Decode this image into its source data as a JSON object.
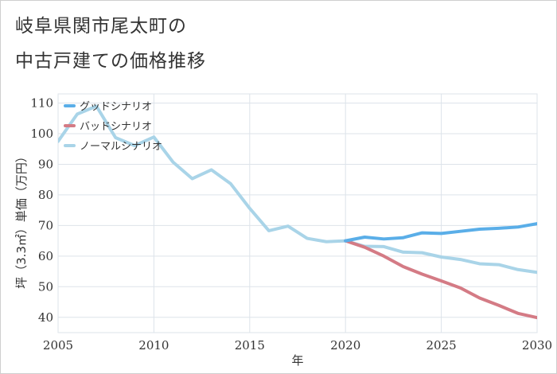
{
  "title_line1": "岐阜県関市尾太町の",
  "title_line2": "中古戸建ての価格推移",
  "chart_data": {
    "type": "line",
    "xlabel": "年",
    "ylabel": "坪（3.3㎡）単価（万円）",
    "xlim": [
      2005,
      2030
    ],
    "ylim": [
      35,
      113
    ],
    "xticks": [
      2005,
      2010,
      2015,
      2020,
      2025,
      2030
    ],
    "yticks": [
      40,
      50,
      60,
      70,
      80,
      90,
      100,
      110
    ],
    "grid": true,
    "legend_position": "top-left",
    "series": [
      {
        "name": "グッドシナリオ",
        "color": "#5aaee8",
        "x": [
          2020,
          2021,
          2022,
          2023,
          2024,
          2025,
          2026,
          2027,
          2028,
          2029,
          2030
        ],
        "y": [
          65.0,
          66.2,
          65.6,
          66.0,
          67.6,
          67.4,
          68.1,
          68.8,
          69.1,
          69.5,
          70.6
        ]
      },
      {
        "name": "バッドシナリオ",
        "color": "#d47b85",
        "x": [
          2020,
          2021,
          2022,
          2023,
          2024,
          2025,
          2026,
          2027,
          2028,
          2029,
          2030
        ],
        "y": [
          65.0,
          62.9,
          60.0,
          56.6,
          54.1,
          51.9,
          49.6,
          46.3,
          43.9,
          41.3,
          39.9
        ]
      },
      {
        "name": "ノーマルシナリオ",
        "color": "#a9d4e8",
        "x": [
          2005,
          2006,
          2007,
          2008,
          2009,
          2010,
          2011,
          2012,
          2013,
          2014,
          2015,
          2016,
          2017,
          2018,
          2019,
          2020,
          2021,
          2022,
          2023,
          2024,
          2025,
          2026,
          2027,
          2028,
          2029,
          2030
        ],
        "y": [
          97.5,
          106.4,
          109.0,
          98.7,
          96.1,
          98.9,
          90.7,
          85.3,
          88.2,
          83.7,
          75.6,
          68.3,
          69.8,
          65.8,
          64.7,
          65.0,
          63.2,
          63.1,
          61.3,
          61.1,
          59.7,
          58.9,
          57.5,
          57.2,
          55.6,
          54.7
        ]
      }
    ]
  }
}
